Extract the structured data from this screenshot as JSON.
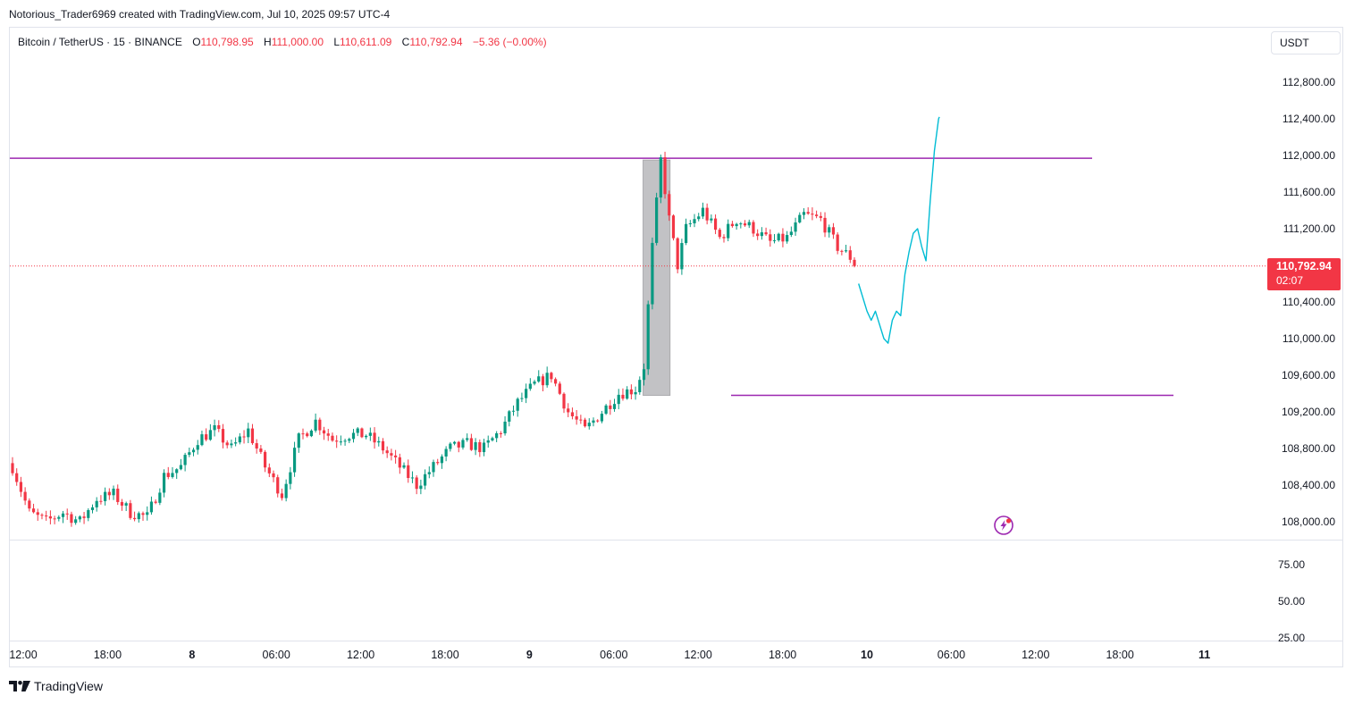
{
  "header": {
    "credit": "Notorious_Trader6969 created with TradingView.com, Jul 10, 2025 09:57 UTC-4"
  },
  "legend": {
    "symbol": "Bitcoin / TetherUS · 15 · BINANCE",
    "open_key": "O",
    "open": "110,798.95",
    "high_key": "H",
    "high": "111,000.00",
    "low_key": "L",
    "low": "110,611.09",
    "close_key": "C",
    "close": "110,792.94",
    "change": "−5.36 (−0.00%)"
  },
  "currency": "USDT",
  "price_badge": {
    "price": "110,792.94",
    "countdown": "02:07"
  },
  "footer": {
    "brand": "TradingView"
  },
  "colors": {
    "up": "#089981",
    "down": "#f23645",
    "level_line": "#9c27b0",
    "drawing": "#00bcd4",
    "highlight_box": "#a9a9ad",
    "last_price_line": "#f23645"
  },
  "icons": {
    "flash": "flash-icon",
    "logo": "tradingview-logo-icon"
  },
  "chart_data": {
    "type": "candlestick",
    "timeframe": "15",
    "x_ticks": [
      "12:00",
      "18:00",
      "8",
      "06:00",
      "12:00",
      "18:00",
      "9",
      "06:00",
      "12:00",
      "18:00",
      "10",
      "06:00",
      "12:00",
      "18:00",
      "11"
    ],
    "y_ticks": [
      "112,800.00",
      "112,400.00",
      "112,000.00",
      "111,600.00",
      "111,200.00",
      "110,400.00",
      "110,000.00",
      "109,600.00",
      "109,200.00",
      "108,800.00",
      "108,400.00",
      "108,000.00"
    ],
    "y_range": [
      107800,
      112850
    ],
    "last_price": 110792.94,
    "resistance_level": 111970,
    "support_level": 109380,
    "anchors": [
      [
        0,
        108600
      ],
      [
        4,
        108100
      ],
      [
        8,
        108000
      ],
      [
        12,
        108100
      ],
      [
        16,
        108000
      ],
      [
        20,
        108250
      ],
      [
        24,
        108300
      ],
      [
        28,
        108100
      ],
      [
        32,
        108050
      ],
      [
        36,
        108500
      ],
      [
        40,
        108600
      ],
      [
        44,
        108900
      ],
      [
        48,
        109000
      ],
      [
        52,
        108800
      ],
      [
        56,
        109000
      ],
      [
        60,
        108600
      ],
      [
        64,
        108300
      ],
      [
        68,
        108900
      ],
      [
        72,
        109100
      ],
      [
        76,
        108900
      ],
      [
        80,
        108950
      ],
      [
        84,
        108950
      ],
      [
        88,
        108800
      ],
      [
        92,
        108600
      ],
      [
        96,
        108400
      ],
      [
        100,
        108600
      ],
      [
        104,
        108800
      ],
      [
        108,
        108850
      ],
      [
        112,
        108800
      ],
      [
        116,
        109000
      ],
      [
        120,
        109300
      ],
      [
        124,
        109500
      ],
      [
        128,
        109600
      ],
      [
        132,
        109200
      ],
      [
        136,
        109000
      ],
      [
        140,
        109200
      ],
      [
        144,
        109400
      ],
      [
        148,
        109450
      ],
      [
        150,
        109700
      ],
      [
        152,
        111000
      ],
      [
        154,
        111950
      ],
      [
        156,
        111300
      ],
      [
        158,
        110800
      ],
      [
        160,
        111200
      ],
      [
        164,
        111400
      ],
      [
        168,
        111100
      ],
      [
        172,
        111300
      ],
      [
        176,
        111200
      ],
      [
        180,
        111050
      ],
      [
        184,
        111100
      ],
      [
        188,
        111350
      ],
      [
        192,
        111300
      ],
      [
        196,
        111000
      ],
      [
        200,
        110850
      ]
    ],
    "annotations": {
      "highlight_box": {
        "from_bar": 150,
        "to_bar": 156,
        "high": 111950,
        "low": 109380
      },
      "projection_path": [
        [
          201,
          110600
        ],
        [
          203,
          110300
        ],
        [
          204,
          110200
        ],
        [
          205,
          110300
        ],
        [
          207,
          110000
        ],
        [
          208,
          109950
        ],
        [
          209,
          110200
        ],
        [
          210,
          110300
        ],
        [
          211,
          110250
        ],
        [
          212,
          110700
        ],
        [
          213,
          110950
        ],
        [
          214,
          111150
        ],
        [
          215,
          111200
        ],
        [
          216,
          111000
        ],
        [
          217,
          110850
        ],
        [
          218,
          111500
        ],
        [
          219,
          112050
        ],
        [
          220,
          112400
        ],
        [
          220.2,
          112420
        ]
      ],
      "extra_levels": [
        75,
        50,
        25
      ]
    },
    "lower_pane": {
      "y_ticks": [
        "75.00",
        "50.00",
        "25.00"
      ]
    }
  }
}
